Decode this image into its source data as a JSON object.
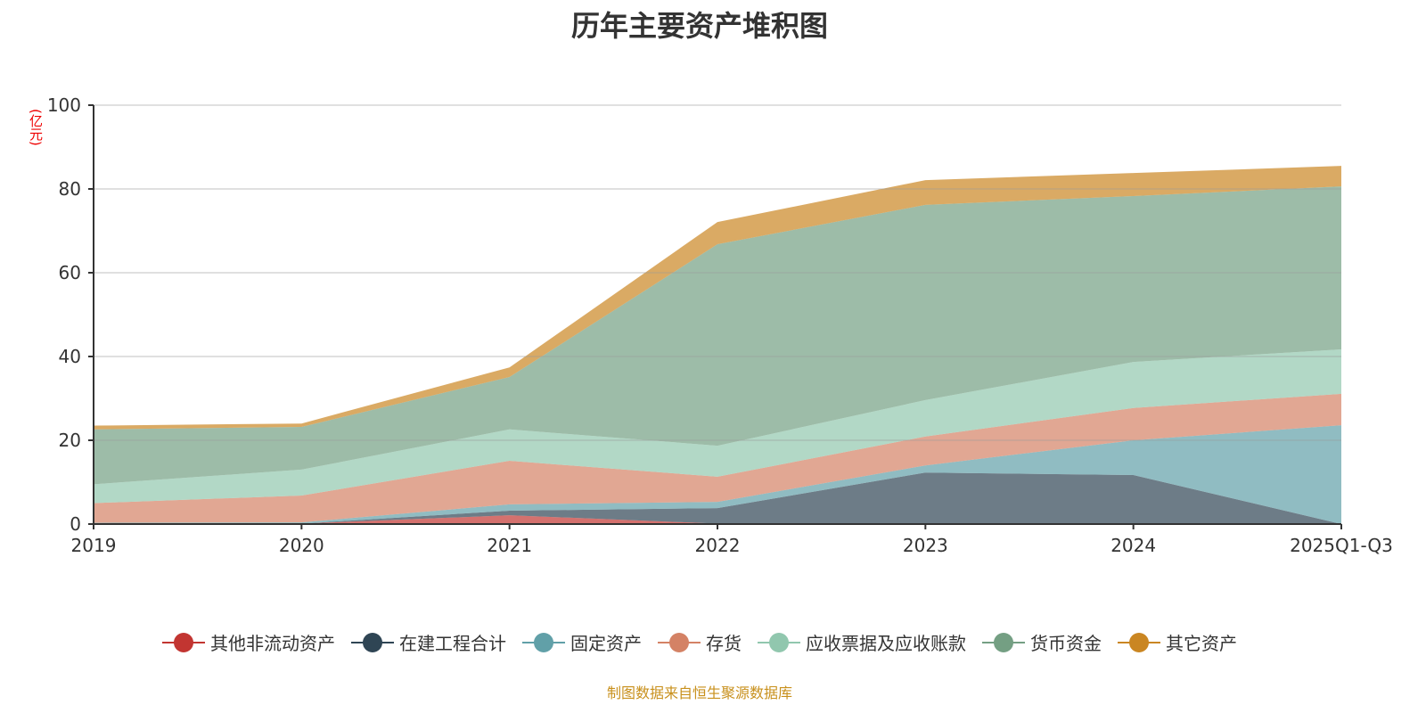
{
  "chart_data": {
    "type": "area",
    "stacked": true,
    "title": "历年主要资产堆积图",
    "ylabel": "(亿元)",
    "ylim": [
      0,
      100
    ],
    "yticks": [
      0,
      20,
      40,
      60,
      80,
      100
    ],
    "grid": true,
    "legend_position": "bottom",
    "categories": [
      "2019",
      "2020",
      "2021",
      "2022",
      "2023",
      "2024",
      "2025Q1-Q3"
    ],
    "series": [
      {
        "name": "其他非流动资产",
        "color": "#c23531",
        "values": [
          0.1,
          0.1,
          2.1,
          0.1,
          0,
          0,
          0
        ]
      },
      {
        "name": "在建工程合计",
        "color": "#2f4554",
        "values": [
          0,
          0,
          1.1,
          3.7,
          12.3,
          11.7,
          0
        ]
      },
      {
        "name": "固定资产",
        "color": "#61a0a8",
        "values": [
          0.2,
          0.3,
          1.5,
          1.5,
          1.7,
          8.3,
          23.6
        ]
      },
      {
        "name": "存货",
        "color": "#d48265",
        "values": [
          4.7,
          6.4,
          10.4,
          6.0,
          6.9,
          7.7,
          7.5
        ]
      },
      {
        "name": "应收票据及应收账款",
        "color": "#91c7ae",
        "values": [
          4.5,
          6.2,
          7.5,
          7.4,
          8.7,
          11.0,
          10.6
        ]
      },
      {
        "name": "货币资金",
        "color": "#749f83",
        "values": [
          13.1,
          10.2,
          12.5,
          48.1,
          46.6,
          39.6,
          38.9
        ]
      },
      {
        "name": "其它资产",
        "color": "#ca8622",
        "values": [
          0.9,
          0.8,
          2.3,
          5.3,
          5.9,
          5.5,
          4.9
        ]
      }
    ]
  },
  "source": "制图数据来自恒生聚源数据库"
}
